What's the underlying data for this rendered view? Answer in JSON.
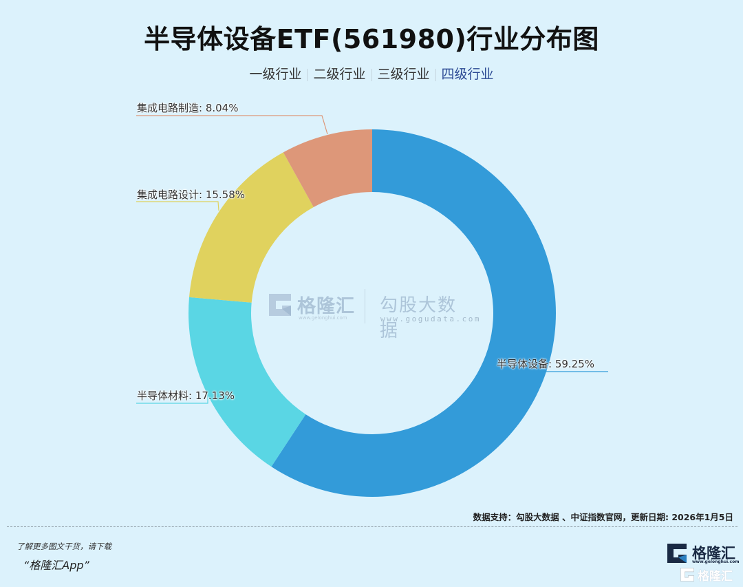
{
  "title": "半导体设备ETF(561980)行业分布图",
  "tabs": [
    {
      "label": "一级行业",
      "active": false
    },
    {
      "label": "二级行业",
      "active": false
    },
    {
      "label": "三级行业",
      "active": false
    },
    {
      "label": "四级行业",
      "active": true
    }
  ],
  "chart_data": {
    "type": "pie",
    "subtype": "donut",
    "title": "半导体设备ETF(561980)行业分布图",
    "categories": [
      "半导体设备",
      "半导体材料",
      "集成电路设计",
      "集成电路制造"
    ],
    "values": [
      59.25,
      17.13,
      15.58,
      8.04
    ],
    "unit": "%",
    "colors": [
      "#339bd9",
      "#5ad6e4",
      "#e0d25e",
      "#dd9779"
    ],
    "start_angle": "12 o'clock",
    "direction": "clockwise",
    "labels": [
      "半导体设备: 59.25%",
      "半导体材料: 17.13%",
      "集成电路设计: 15.58%",
      "集成电路制造: 8.04%"
    ],
    "legend": "none"
  },
  "watermark": {
    "brand1": "格隆汇",
    "brand1_url": "www.gelonghui.com",
    "brand2": "勾股大数据",
    "brand2_url": "www.gogudata.com"
  },
  "footer": {
    "source": "数据支持：勾股大数据 、中证指数官网，更新日期: 2026年1月5日",
    "promo_line1": "了解更多图文干货，请下载",
    "promo_line2": "“格隆汇App”",
    "logo_name": "格隆汇",
    "logo_url": "www.gelonghui.com",
    "logo_name_small": "格隆汇"
  }
}
